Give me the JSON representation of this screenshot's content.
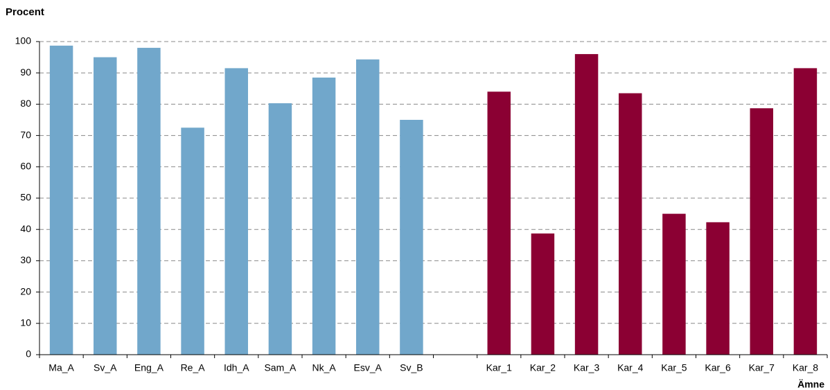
{
  "chart_data": {
    "type": "bar",
    "ylabel": "Procent",
    "xlabel": "Ämne",
    "categories": [
      "Ma_A",
      "Sv_A",
      "Eng_A",
      "Re_A",
      "Idh_A",
      "Sam_A",
      "Nk_A",
      "Esv_A",
      "Sv_B",
      null,
      "Kar_1",
      "Kar_2",
      "Kar_3",
      "Kar_4",
      "Kar_5",
      "Kar_6",
      "Kar_7",
      "Kar_8"
    ],
    "values": [
      98.7,
      95,
      98,
      72.5,
      91.5,
      80.3,
      88.5,
      94.3,
      75,
      null,
      84,
      38.7,
      96,
      83.5,
      45,
      42.3,
      78.7,
      91.5
    ],
    "colors": [
      "#71a7cb",
      "#71a7cb",
      "#71a7cb",
      "#71a7cb",
      "#71a7cb",
      "#71a7cb",
      "#71a7cb",
      "#71a7cb",
      "#71a7cb",
      null,
      "#8b0033",
      "#8b0033",
      "#8b0033",
      "#8b0033",
      "#8b0033",
      "#8b0033",
      "#8b0033",
      "#8b0033"
    ],
    "ylim": [
      0,
      100
    ],
    "yticks": [
      0,
      10,
      20,
      30,
      40,
      50,
      60,
      70,
      80,
      90,
      100
    ],
    "grid": true
  }
}
